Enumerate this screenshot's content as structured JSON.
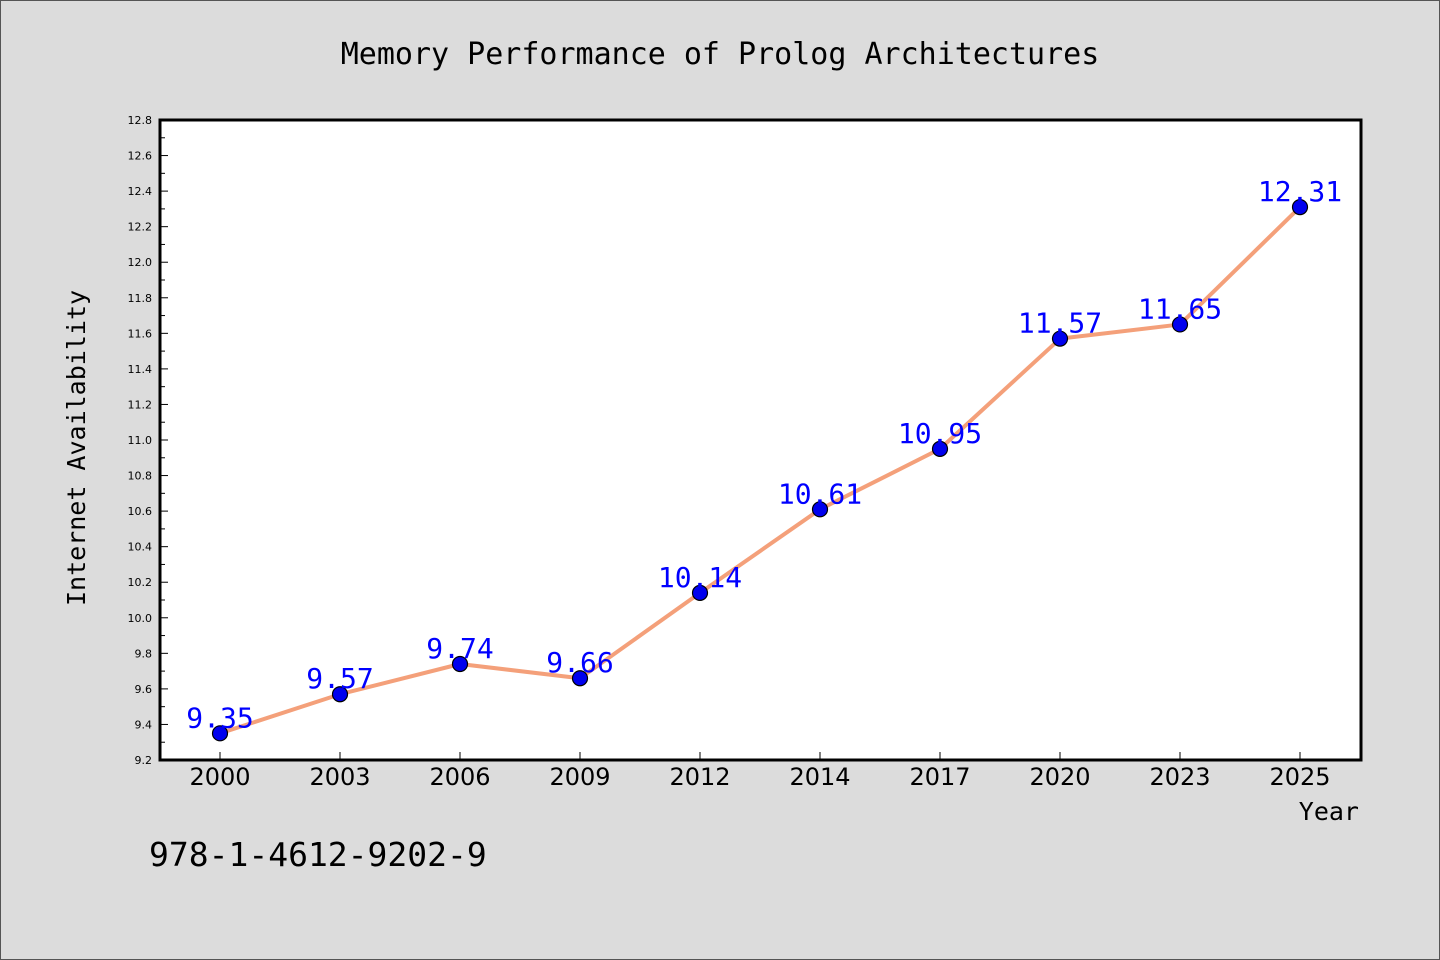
{
  "chart_data": {
    "type": "line",
    "title": "Memory Performance of Prolog Architectures",
    "xlabel": "Year",
    "ylabel": "Internet Availability",
    "categories": [
      "2000",
      "2003",
      "2006",
      "2009",
      "2012",
      "2014",
      "2017",
      "2020",
      "2023",
      "2025"
    ],
    "series": [
      {
        "values": [
          9.35,
          9.57,
          9.74,
          9.66,
          10.14,
          10.61,
          10.95,
          11.57,
          11.65,
          12.31
        ],
        "value_labels": [
          "9.35",
          "9.57",
          "9.74",
          "9.66",
          "10.14",
          "10.61",
          "10.95",
          "11.57",
          "11.65",
          "12.31"
        ],
        "line_color": "#f4a07a",
        "marker_color": "#0000ee"
      }
    ],
    "ylim": [
      9.2,
      12.8
    ],
    "yticks": [
      "9.2",
      "9.4",
      "9.6",
      "9.8",
      "10.0",
      "10.2",
      "10.4",
      "10.6",
      "10.8",
      "11.0",
      "11.2",
      "11.4",
      "11.6",
      "11.8",
      "12.0",
      "12.2",
      "12.4",
      "12.6",
      "12.8"
    ],
    "grid": false,
    "label_color": "#0000ff",
    "annotation": "978-1-4612-9202-9"
  }
}
